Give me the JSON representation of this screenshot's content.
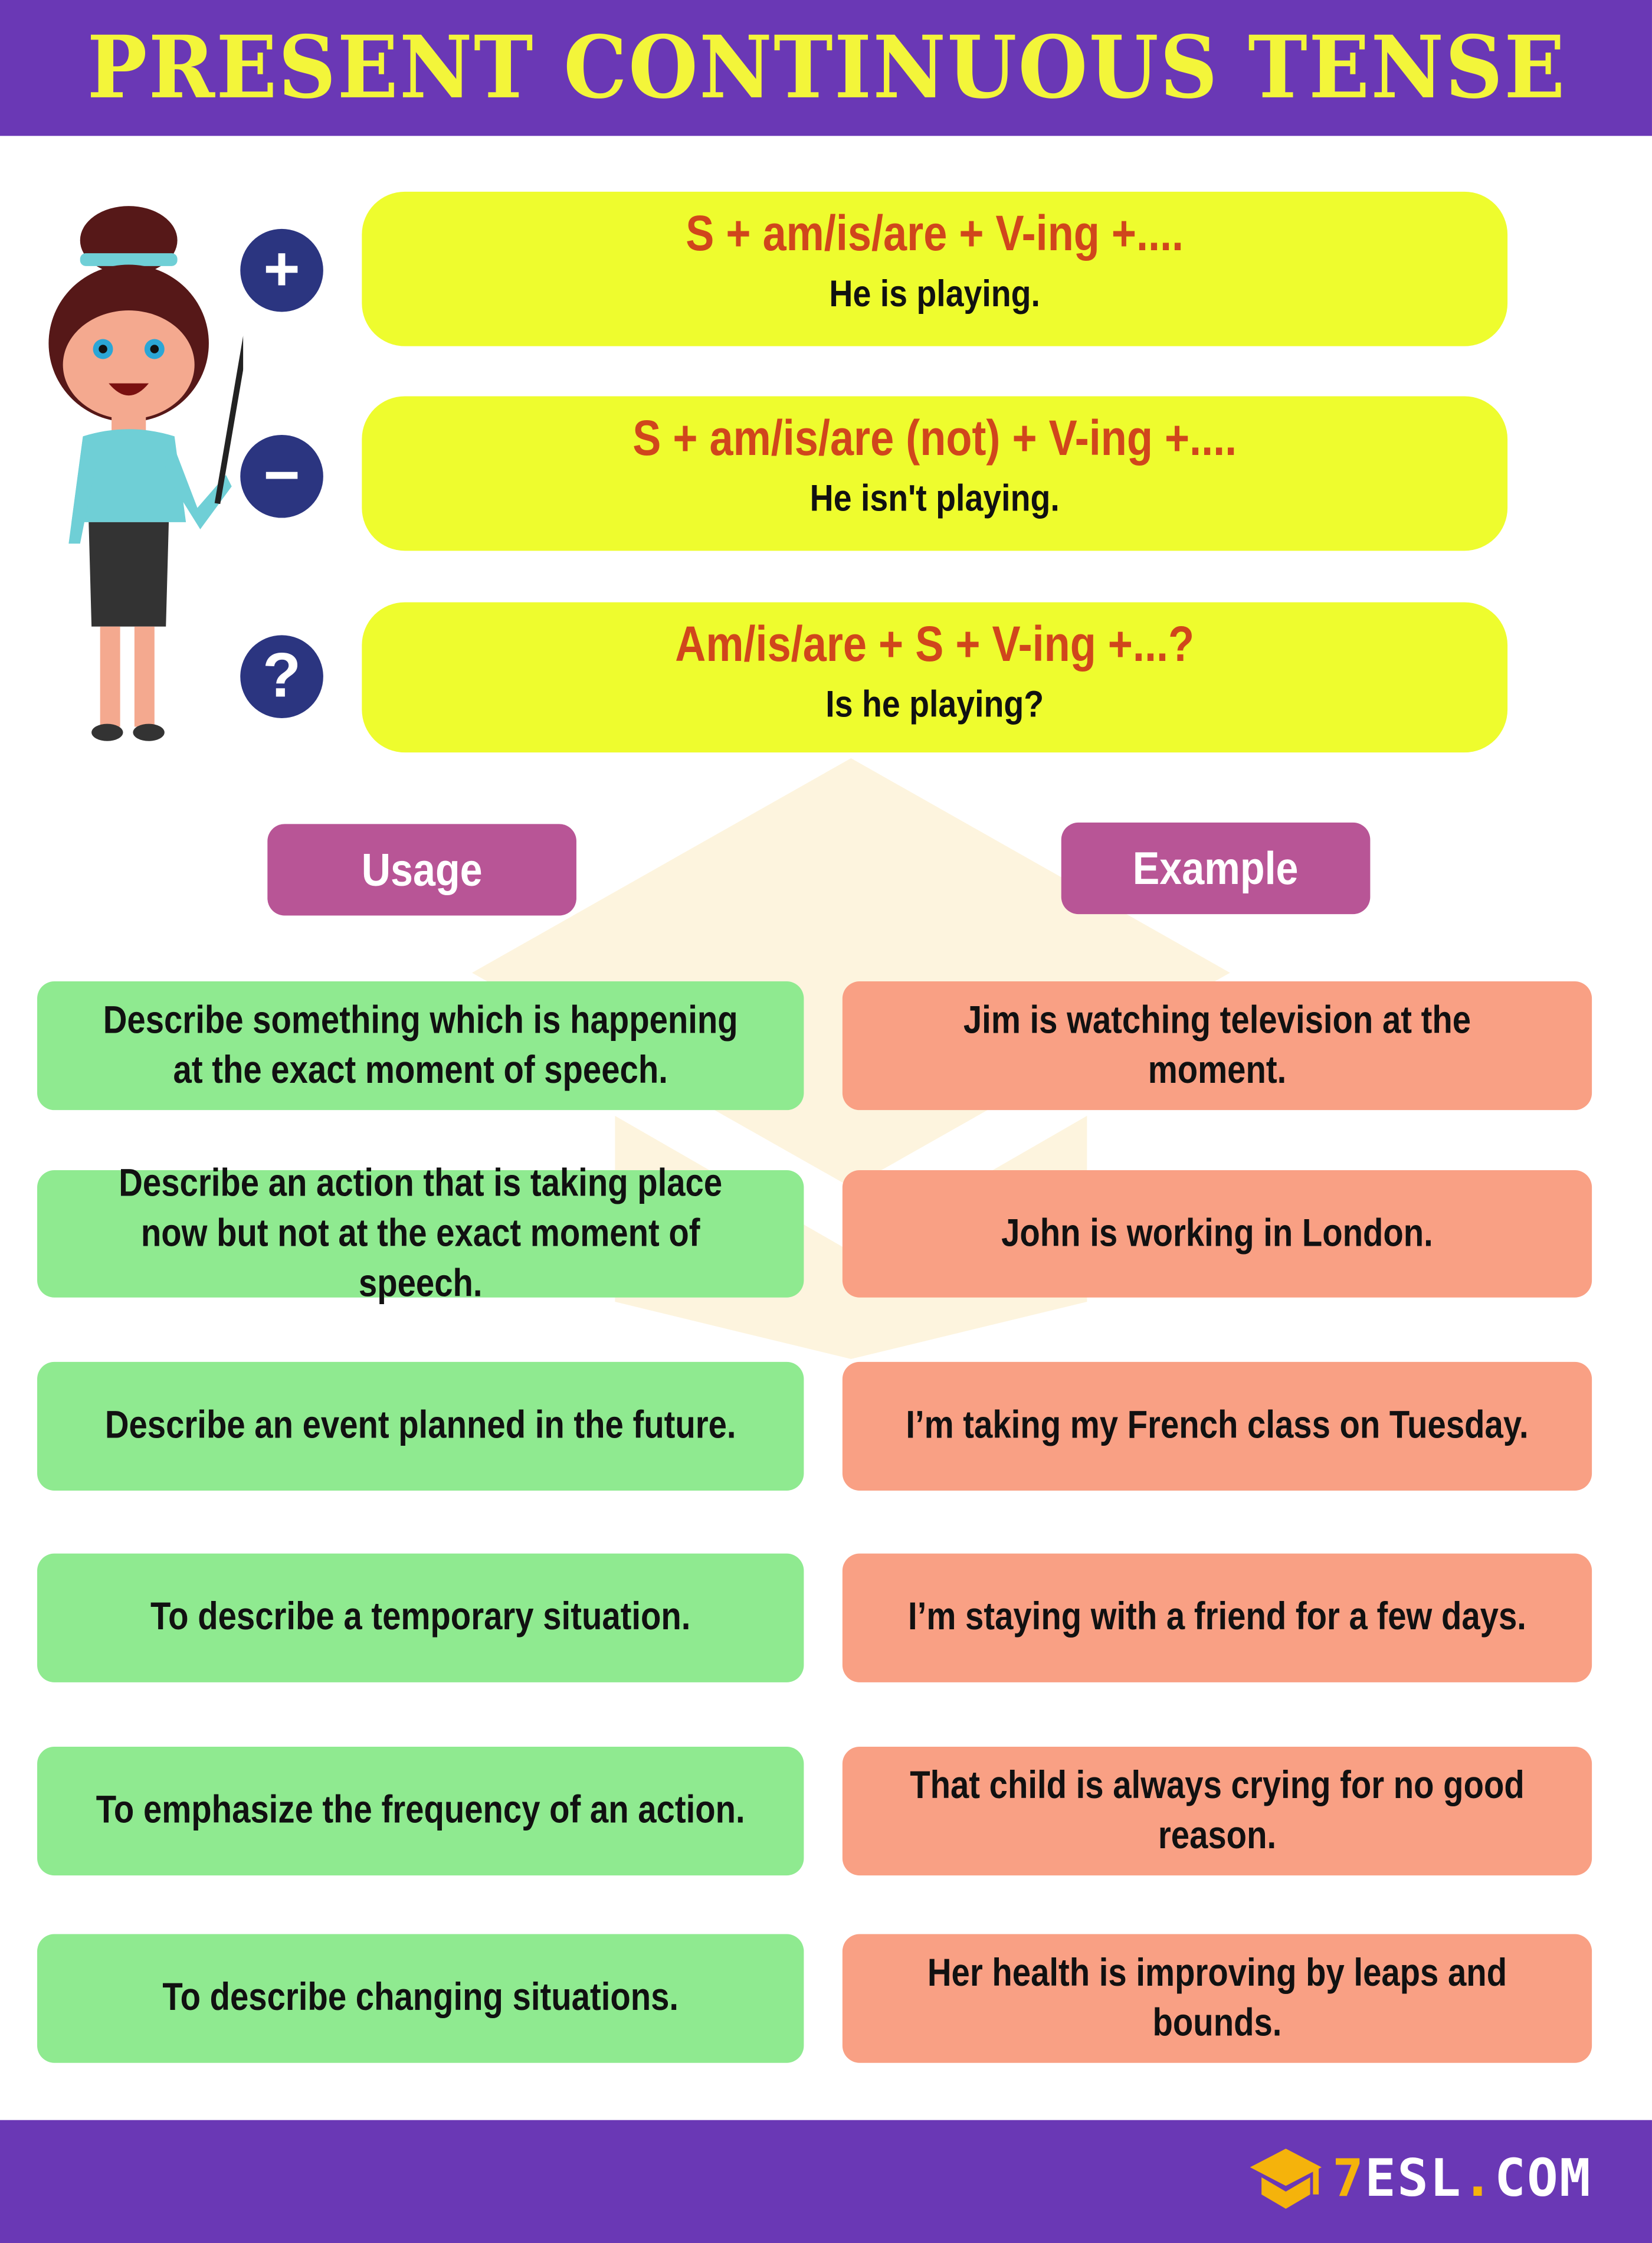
{
  "header": {
    "title": "PRESENT CONTINUOUS TENSE"
  },
  "structures": [
    {
      "icon": "plus-icon",
      "symbol": "+",
      "formula": "S + am/is/are + V-ing +....",
      "example": "He is playing."
    },
    {
      "icon": "minus-icon",
      "symbol": "−",
      "formula": "S + am/is/are (not) + V-ing +....",
      "example": "He isn't playing."
    },
    {
      "icon": "question-icon",
      "symbol": "?",
      "formula": "Am/is/are + S + V-ing +...?",
      "example": "Is he playing?"
    }
  ],
  "columns": {
    "usage": "Usage",
    "example": "Example"
  },
  "rows": [
    {
      "usage": "Describe something which is happening at the exact moment of speech.",
      "example": "Jim is watching television at the moment."
    },
    {
      "usage": "Describe an action that is taking place now but not at the exact moment of speech.",
      "example": "John is working in London."
    },
    {
      "usage": "Describe an event planned in the future.",
      "example": "I’m taking my French class on Tuesday."
    },
    {
      "usage": "To describe a temporary situation.",
      "example": "I’m staying with a friend for a few days."
    },
    {
      "usage": "To emphasize the frequency of an action.",
      "example": "That child is always crying for no good reason."
    },
    {
      "usage": "To describe changing situations.",
      "example": "Her health is improving by leaps and bounds."
    }
  ],
  "footer": {
    "logo_prefix": "7",
    "logo_main": "ESL",
    "logo_dot": ".",
    "logo_suffix": "COM"
  },
  "colors": {
    "purple": "#6a38b5",
    "title_yellow": "#f3f53a",
    "formula_box": "#eefc2e",
    "formula_text": "#d0461c",
    "sign_circle": "#2b3580",
    "pill": "#b85596",
    "usage_green": "#8fea90",
    "example_salmon": "#f9a084",
    "logo_orange": "#f5b30b"
  }
}
